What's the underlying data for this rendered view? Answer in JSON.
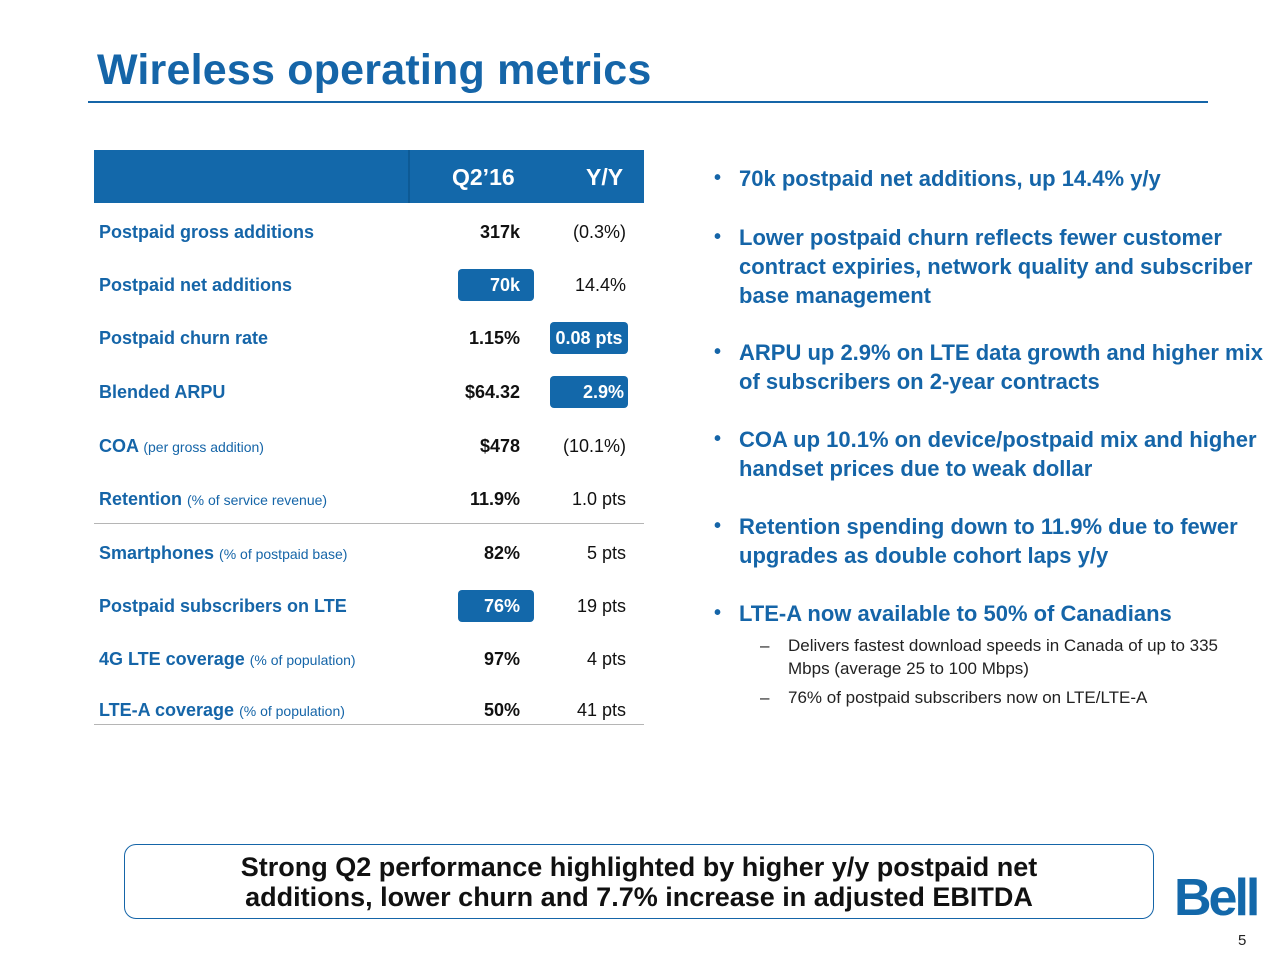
{
  "slide": {
    "title": "Wireless operating metrics",
    "page_number": "5",
    "logo_text": "Bell"
  },
  "table": {
    "headers": {
      "period": "Q2’16",
      "change": "Y/Y"
    },
    "rows": [
      {
        "label": "Postpaid gross additions",
        "note": "",
        "value": "317k",
        "change": "(0.3%)"
      },
      {
        "label": "Postpaid net additions",
        "note": "",
        "value": "70k",
        "change": "14.4%"
      },
      {
        "label": "Postpaid churn rate",
        "note": "",
        "value": "1.15%",
        "change": "0.08 pts"
      },
      {
        "label": "Blended ARPU",
        "note": "",
        "value": "$64.32",
        "change": "2.9%"
      },
      {
        "label": "COA",
        "note": "(per gross addition)",
        "value": "$478",
        "change": "(10.1%)"
      },
      {
        "label": "Retention",
        "note": "(% of service revenue)",
        "value": "11.9%",
        "change": "1.0 pts"
      },
      {
        "label": "Smartphones",
        "note": "(% of postpaid base)",
        "value": "82%",
        "change": "5 pts"
      },
      {
        "label": "Postpaid subscribers on LTE",
        "note": "",
        "value": "76%",
        "change": "19 pts"
      },
      {
        "label": "4G LTE coverage",
        "note": "(% of population)",
        "value": "97%",
        "change": "4 pts"
      },
      {
        "label": "LTE-A coverage",
        "note": "(% of population)",
        "value": "50%",
        "change": "41 pts"
      }
    ]
  },
  "bullets": [
    {
      "text": "70k postpaid net additions, up 14.4% y/y"
    },
    {
      "text": "Lower postpaid churn reflects fewer customer contract expiries, network quality and subscriber base management"
    },
    {
      "text": "ARPU up 2.9% on LTE data growth and higher mix of subscribers on 2-year contracts"
    },
    {
      "text": "COA up 10.1% on device/postpaid mix and higher handset prices due to weak dollar"
    },
    {
      "text": "Retention spending down to 11.9% due to fewer upgrades as double cohort laps y/y"
    },
    {
      "text": "LTE-A now available to 50% of Canadians"
    }
  ],
  "sub_bullets": [
    {
      "text": "Delivers fastest download speeds in Canada of up to 335 Mbps (average 25 to 100 Mbps)"
    },
    {
      "text": "76% of postpaid subscribers now on LTE/LTE-A"
    }
  ],
  "symbols": {
    "bullet": "•",
    "dash": "–"
  },
  "callout": {
    "line1": "Strong Q2 performance highlighted by higher y/y postpaid net",
    "line2": "additions, lower churn and 7.7% increase in adjusted EBITDA"
  },
  "colors": {
    "brand_blue": "#1565a8",
    "header_blue": "#1368aa"
  }
}
